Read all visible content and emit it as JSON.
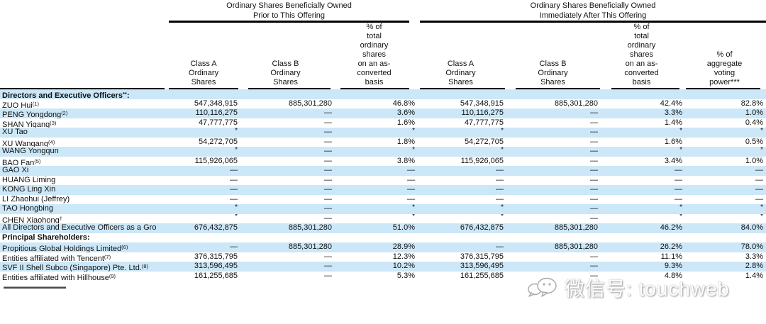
{
  "table": {
    "group_headers": [
      {
        "line1": "Ordinary Shares Beneficially Owned",
        "line2": "Prior to This Offering"
      },
      {
        "line1": "Ordinary Shares Beneficially Owned",
        "line2": "Immediately After This Offering"
      }
    ],
    "columns": [
      {
        "name": "row-label-column",
        "lines": []
      },
      {
        "name": "col-classA-prior",
        "lines": [
          "Class A",
          "Ordinary",
          "Shares"
        ]
      },
      {
        "name": "col-classB-prior",
        "lines": [
          "Class B",
          "Ordinary",
          "Shares"
        ]
      },
      {
        "name": "col-pct-asconverted-prior",
        "lines": [
          "% of",
          "total",
          "ordinary",
          "shares",
          "on an as-",
          "converted",
          "basis"
        ]
      },
      {
        "name": "col-classA-after",
        "lines": [
          "Class A",
          "Ordinary",
          "Shares"
        ]
      },
      {
        "name": "col-classB-after",
        "lines": [
          "Class B",
          "Ordinary",
          "Shares"
        ]
      },
      {
        "name": "col-pct-asconverted-after",
        "lines": [
          "% of",
          "total",
          "ordinary",
          "shares",
          "on an as-",
          "converted",
          "basis"
        ]
      },
      {
        "name": "col-pct-voting-power",
        "lines": [
          "% of",
          "aggregate",
          "voting",
          "power***"
        ]
      }
    ],
    "rows": [
      {
        "section": true,
        "label": "Directors and Executive Officers",
        "sup": "**",
        "suffix": ":"
      },
      {
        "label": "ZUO Hui",
        "sup": "(1)",
        "values": [
          "547,348,915",
          "885,301,280",
          "46.8%",
          "547,348,915",
          "885,301,280",
          "42.4%",
          "82.8%"
        ]
      },
      {
        "label": "PENG Yongdong",
        "sup": "(2)",
        "values": [
          "110,116,275",
          "—",
          "3.6%",
          "110,116,275",
          "—",
          "3.3%",
          "1.0%"
        ]
      },
      {
        "label": "SHAN Yigang",
        "sup": "(3)",
        "values": [
          "47,777,775",
          "—",
          "1.6%",
          "47,777,775",
          "—",
          "1.4%",
          "0.4%"
        ]
      },
      {
        "label": "XU Tao",
        "values": [
          "*",
          "—",
          "*",
          "*",
          "—",
          "*",
          "*"
        ]
      },
      {
        "label": "XU Wangang",
        "sup": "(4)",
        "values": [
          "54,272,705",
          "—",
          "1.8%",
          "54,272,705",
          "—",
          "1.6%",
          "0.5%"
        ]
      },
      {
        "label": "WANG Yongqun",
        "values": [
          "*",
          "—",
          "*",
          "*",
          "—",
          "*",
          "*"
        ]
      },
      {
        "label": "BAO Fan",
        "sup": "(5)",
        "values": [
          "115,926,065",
          "—",
          "3.8%",
          "115,926,065",
          "—",
          "3.4%",
          "1.0%"
        ]
      },
      {
        "label": "GAO Xi",
        "values": [
          "—",
          "—",
          "—",
          "—",
          "—",
          "—",
          "—"
        ]
      },
      {
        "label": "HUANG Liming",
        "values": [
          "—",
          "—",
          "—",
          "—",
          "—",
          "—",
          "—"
        ]
      },
      {
        "label": "KONG Ling Xin",
        "values": [
          "—",
          "—",
          "—",
          "—",
          "—",
          "—",
          "—"
        ]
      },
      {
        "label": "LI Zhaohui (Jeffrey)",
        "values": [
          "—",
          "—",
          "—",
          "—",
          "—",
          "—",
          "—"
        ]
      },
      {
        "label": "TAO Hongbing",
        "values": [
          "*",
          "—",
          "*",
          "*",
          "—",
          "*",
          "*"
        ]
      },
      {
        "label": "CHEN Xiaohong",
        "sup": "†",
        "values": [
          "*",
          "—",
          "*",
          "*",
          "—",
          "*",
          "*"
        ]
      },
      {
        "label": "All Directors and Executive Officers as a Gro",
        "values": [
          "676,432,875",
          "885,301,280",
          "51.0%",
          "676,432,875",
          "885,301,280",
          "46.2%",
          "84.0%"
        ]
      },
      {
        "section": true,
        "label": "Principal Shareholders",
        "suffix": ":"
      },
      {
        "label": "Propitious Global Holdings Limited",
        "sup": "(6)",
        "values": [
          "—",
          "885,301,280",
          "28.9%",
          "—",
          "885,301,280",
          "26.2%",
          "78.0%"
        ]
      },
      {
        "label": "Entities affiliated with Tencent",
        "sup": "(7)",
        "values": [
          "376,315,795",
          "—",
          "12.3%",
          "376,315,795",
          "—",
          "11.1%",
          "3.3%"
        ]
      },
      {
        "label": "SVF II Shell Subco (Singapore) Pte. Ltd.",
        "sup": "(8)",
        "values": [
          "313,596,495",
          "—",
          "10.2%",
          "313,596,495",
          "—",
          "9.3%",
          "2.8%"
        ]
      },
      {
        "label": "Entities affiliated with Hillhouse",
        "sup": "(9)",
        "values": [
          "161,255,685",
          "—",
          "5.3%",
          "161,255,685",
          "—",
          "4.8%",
          "1.4%"
        ]
      }
    ]
  },
  "watermark": {
    "icon": "wechat-icon",
    "text": "微信号: touchweb"
  },
  "colors": {
    "stripe": "#cbe7f8",
    "rule": "#000000",
    "text": "#111111"
  }
}
